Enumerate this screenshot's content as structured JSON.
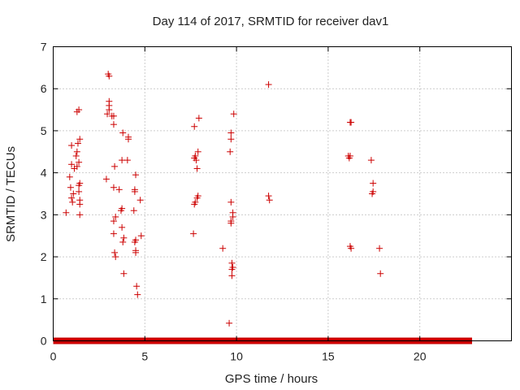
{
  "chart_data": {
    "type": "scatter",
    "title": "Day 114 of 2017, SRMTID for receiver dav1",
    "xlabel": "GPS time / hours",
    "ylabel": "SRMTID / TECUs",
    "xlim": [
      0,
      25
    ],
    "ylim": [
      0,
      7
    ],
    "xticks": [
      0,
      5,
      10,
      15,
      20
    ],
    "yticks": [
      0,
      1,
      2,
      3,
      4,
      5,
      6,
      7
    ],
    "grid": true,
    "marker": "+",
    "color": "#cc0000",
    "zero_baseline": {
      "y": 0,
      "x_start": 0,
      "x_end": 22.85
    },
    "series": [
      {
        "name": "SRMTID",
        "points": [
          [
            0.7,
            3.05
          ],
          [
            0.9,
            3.9
          ],
          [
            0.95,
            3.65
          ],
          [
            1.0,
            4.2
          ],
          [
            1.0,
            4.65
          ],
          [
            1.0,
            3.4
          ],
          [
            1.05,
            3.3
          ],
          [
            1.1,
            3.5
          ],
          [
            1.15,
            4.1
          ],
          [
            1.25,
            4.4
          ],
          [
            1.3,
            4.15
          ],
          [
            1.3,
            4.5
          ],
          [
            1.35,
            4.7
          ],
          [
            1.3,
            5.45
          ],
          [
            1.4,
            5.5
          ],
          [
            1.4,
            4.25
          ],
          [
            1.4,
            3.55
          ],
          [
            1.4,
            3.7
          ],
          [
            1.45,
            3.75
          ],
          [
            1.45,
            4.8
          ],
          [
            1.45,
            3.35
          ],
          [
            1.45,
            3.25
          ],
          [
            1.45,
            3.0
          ],
          [
            2.9,
            3.85
          ],
          [
            2.95,
            5.4
          ],
          [
            3.0,
            6.35
          ],
          [
            3.05,
            6.3
          ],
          [
            3.05,
            5.6
          ],
          [
            3.05,
            5.7
          ],
          [
            3.05,
            5.5
          ],
          [
            3.2,
            5.35
          ],
          [
            3.3,
            5.35
          ],
          [
            3.3,
            5.15
          ],
          [
            3.3,
            3.65
          ],
          [
            3.3,
            2.85
          ],
          [
            3.3,
            2.55
          ],
          [
            3.35,
            4.15
          ],
          [
            3.4,
            2.95
          ],
          [
            3.35,
            2.1
          ],
          [
            3.4,
            2.0
          ],
          [
            3.6,
            3.6
          ],
          [
            3.7,
            3.1
          ],
          [
            3.75,
            4.3
          ],
          [
            3.75,
            2.7
          ],
          [
            3.75,
            3.15
          ],
          [
            3.8,
            4.95
          ],
          [
            3.8,
            2.35
          ],
          [
            3.85,
            2.45
          ],
          [
            3.85,
            1.6
          ],
          [
            4.05,
            4.3
          ],
          [
            4.1,
            4.85
          ],
          [
            4.1,
            4.8
          ],
          [
            4.4,
            3.1
          ],
          [
            4.45,
            3.6
          ],
          [
            4.45,
            3.55
          ],
          [
            4.45,
            2.35
          ],
          [
            4.5,
            2.4
          ],
          [
            4.5,
            3.95
          ],
          [
            4.5,
            2.15
          ],
          [
            4.5,
            2.1
          ],
          [
            4.55,
            1.3
          ],
          [
            4.6,
            1.1
          ],
          [
            4.75,
            3.35
          ],
          [
            4.8,
            2.5
          ],
          [
            7.65,
            2.55
          ],
          [
            7.7,
            5.1
          ],
          [
            7.7,
            4.35
          ],
          [
            7.7,
            3.25
          ],
          [
            7.75,
            4.4
          ],
          [
            7.75,
            3.3
          ],
          [
            7.8,
            4.3
          ],
          [
            7.85,
            3.4
          ],
          [
            7.85,
            4.1
          ],
          [
            7.9,
            4.5
          ],
          [
            7.9,
            3.45
          ],
          [
            7.95,
            5.3
          ],
          [
            9.25,
            2.2
          ],
          [
            9.6,
            0.42
          ],
          [
            9.65,
            4.5
          ],
          [
            9.7,
            4.95
          ],
          [
            9.7,
            4.8
          ],
          [
            9.7,
            3.3
          ],
          [
            9.7,
            2.85
          ],
          [
            9.7,
            2.8
          ],
          [
            9.75,
            1.85
          ],
          [
            9.75,
            1.7
          ],
          [
            9.75,
            1.55
          ],
          [
            9.8,
            1.75
          ],
          [
            9.8,
            3.05
          ],
          [
            9.8,
            2.95
          ],
          [
            9.85,
            5.4
          ],
          [
            11.75,
            6.1
          ],
          [
            11.75,
            3.45
          ],
          [
            11.8,
            3.35
          ],
          [
            16.1,
            4.4
          ],
          [
            16.15,
            4.35
          ],
          [
            16.2,
            4.4
          ],
          [
            16.2,
            5.2
          ],
          [
            16.25,
            5.2
          ],
          [
            16.2,
            2.25
          ],
          [
            16.25,
            2.2
          ],
          [
            17.35,
            4.3
          ],
          [
            17.4,
            3.5
          ],
          [
            17.45,
            3.55
          ],
          [
            17.45,
            3.75
          ],
          [
            17.8,
            2.2
          ],
          [
            17.85,
            1.6
          ]
        ]
      }
    ]
  }
}
